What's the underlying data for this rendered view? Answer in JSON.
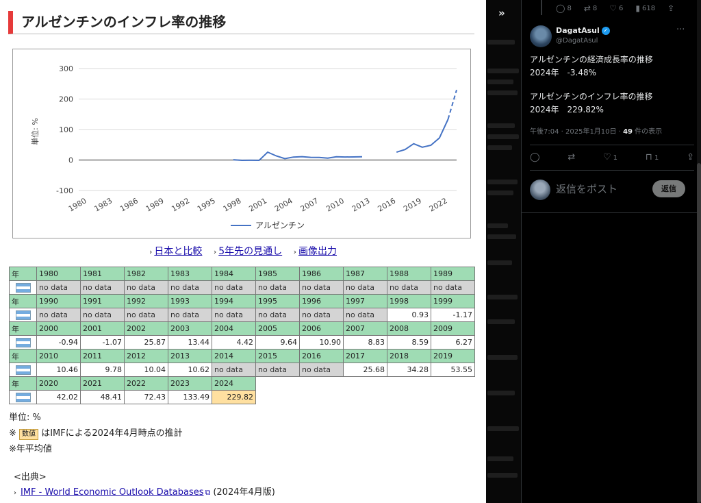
{
  "page": {
    "title": "アルゼンチンのインフレ率の推移"
  },
  "chart_data": {
    "type": "line",
    "ylabel": "単位: %",
    "ylim": [
      -100,
      300
    ],
    "yticks": [
      "300",
      "200",
      "100",
      "0",
      "-100"
    ],
    "xticks": [
      "1980",
      "1983",
      "1986",
      "1989",
      "1992",
      "1995",
      "1998",
      "2001",
      "2004",
      "2007",
      "2010",
      "2013",
      "2016",
      "2019",
      "2022"
    ],
    "legend": "アルゼンチン",
    "legend_position": "bottom",
    "grid": true,
    "series": [
      {
        "name": "アルゼンチン",
        "color": "#4472c4",
        "points": [
          {
            "x": 1998,
            "y": 0.93
          },
          {
            "x": 1999,
            "y": -1.17
          },
          {
            "x": 2000,
            "y": -0.94
          },
          {
            "x": 2001,
            "y": -1.07
          },
          {
            "x": 2002,
            "y": 25.87
          },
          {
            "x": 2003,
            "y": 13.44
          },
          {
            "x": 2004,
            "y": 4.42
          },
          {
            "x": 2005,
            "y": 9.64
          },
          {
            "x": 2006,
            "y": 10.9
          },
          {
            "x": 2007,
            "y": 8.83
          },
          {
            "x": 2008,
            "y": 8.59
          },
          {
            "x": 2009,
            "y": 6.27
          },
          {
            "x": 2010,
            "y": 10.46
          },
          {
            "x": 2011,
            "y": 9.78
          },
          {
            "x": 2012,
            "y": 10.04
          },
          {
            "x": 2013,
            "y": 10.62
          },
          {
            "x": 2017,
            "y": 25.68
          },
          {
            "x": 2018,
            "y": 34.28
          },
          {
            "x": 2019,
            "y": 53.55
          },
          {
            "x": 2020,
            "y": 42.02
          },
          {
            "x": 2021,
            "y": 48.41
          },
          {
            "x": 2022,
            "y": 72.43
          },
          {
            "x": 2023,
            "y": 133.49
          },
          {
            "x": 2024,
            "y": 229.82,
            "estimate": true
          }
        ]
      }
    ]
  },
  "links": [
    {
      "label": "日本と比較"
    },
    {
      "label": "5年先の見通し"
    },
    {
      "label": "画像出力"
    }
  ],
  "table": {
    "year_header": "年",
    "no_data": "no data",
    "rows": [
      {
        "years": [
          "1980",
          "1981",
          "1982",
          "1983",
          "1984",
          "1985",
          "1986",
          "1987",
          "1988",
          "1989"
        ],
        "values": [
          null,
          null,
          null,
          null,
          null,
          null,
          null,
          null,
          null,
          null
        ]
      },
      {
        "years": [
          "1990",
          "1991",
          "1992",
          "1993",
          "1994",
          "1995",
          "1996",
          "1997",
          "1998",
          "1999"
        ],
        "values": [
          null,
          null,
          null,
          null,
          null,
          null,
          null,
          null,
          "0.93",
          "-1.17"
        ]
      },
      {
        "years": [
          "2000",
          "2001",
          "2002",
          "2003",
          "2004",
          "2005",
          "2006",
          "2007",
          "2008",
          "2009"
        ],
        "values": [
          "-0.94",
          "-1.07",
          "25.87",
          "13.44",
          "4.42",
          "9.64",
          "10.90",
          "8.83",
          "8.59",
          "6.27"
        ]
      },
      {
        "years": [
          "2010",
          "2011",
          "2012",
          "2013",
          "2014",
          "2015",
          "2016",
          "2017",
          "2018",
          "2019"
        ],
        "values": [
          "10.46",
          "9.78",
          "10.04",
          "10.62",
          null,
          null,
          null,
          "25.68",
          "34.28",
          "53.55"
        ]
      },
      {
        "years": [
          "2020",
          "2021",
          "2022",
          "2023",
          "2024"
        ],
        "values": [
          "42.02",
          "48.41",
          "72.43",
          "133.49",
          "229.82"
        ],
        "estimate_index": 4
      }
    ]
  },
  "notes": {
    "unit": "単位: %",
    "estimate_prefix": "※",
    "estimate_box": "数値",
    "estimate_text": "はIMFによる2024年4月時点の推計",
    "avg": "※年平均値"
  },
  "source": {
    "heading": "<出典>",
    "link": "IMF - World Economic Outlook Databases",
    "suffix": "(2024年4月版)"
  },
  "twitter": {
    "top_stats": [
      "8",
      "8",
      "6",
      "618"
    ],
    "user_name": "DagatAsul",
    "handle": "@DagatAsul",
    "tweet_lines": [
      "アルゼンチンの経済成長率の推移",
      "2024年　-3.48%",
      "",
      "アルゼンチンのインフレ率の推移",
      "2024年　229.82%"
    ],
    "meta_time": "午後7:04 · 2025年1月10日 · ",
    "meta_views_num": "49",
    "meta_views_label": " 件の表示",
    "actions": {
      "like": "1",
      "bookmark": "1"
    },
    "reply_placeholder": "返信をポスト",
    "reply_button": "返信"
  }
}
